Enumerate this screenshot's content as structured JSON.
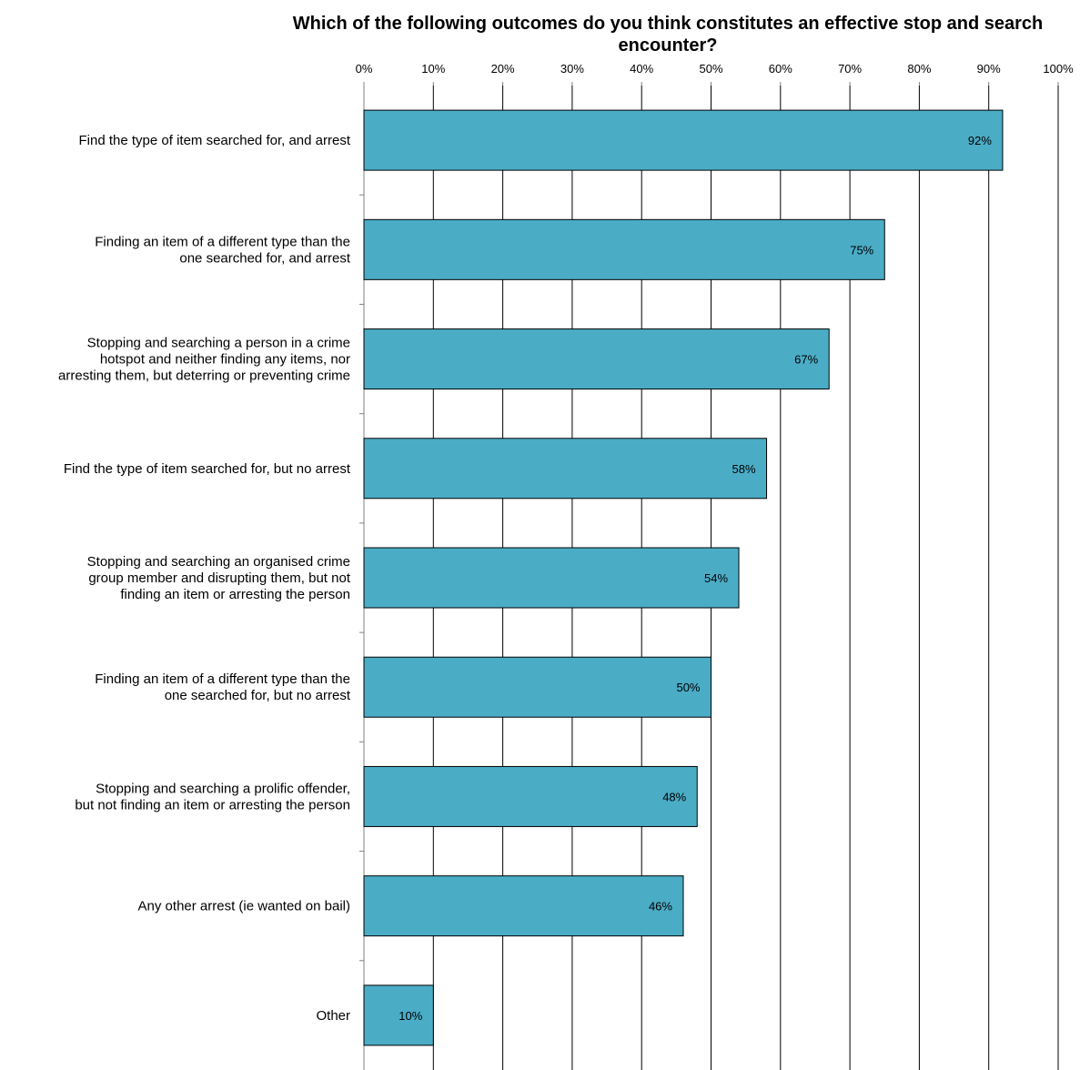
{
  "chart_data": {
    "type": "bar",
    "orientation": "horizontal",
    "title": "Which of the following outcomes do you think constitutes an effective stop and search encounter?",
    "xlabel": "",
    "ylabel": "",
    "xlim": [
      0,
      100
    ],
    "tick_labels": [
      "0%",
      "10%",
      "20%",
      "30%",
      "40%",
      "50%",
      "60%",
      "70%",
      "80%",
      "90%",
      "100%"
    ],
    "axis_position": "top",
    "grid": true,
    "legend": "none",
    "bar_color": "#4bacc6",
    "categories": [
      [
        "Find the type of item searched for, and arrest"
      ],
      [
        "Finding an item of a different type than the",
        "one searched for, and arrest"
      ],
      [
        "Stopping and searching a person in a crime",
        "hotspot and neither finding any items, nor",
        "arresting them, but deterring or preventing crime"
      ],
      [
        "Find the type of item searched for, but no arrest"
      ],
      [
        "Stopping and searching an organised crime",
        "group member and disrupting them, but not",
        "finding an item or arresting the person"
      ],
      [
        "Finding an item of a different type than the",
        "one searched for, but no arrest"
      ],
      [
        "Stopping and searching a prolific offender,",
        "but not finding an item or arresting the person"
      ],
      [
        "Any other arrest (ie wanted on bail)"
      ],
      [
        "Other"
      ]
    ],
    "values": [
      92,
      75,
      67,
      58,
      54,
      50,
      48,
      46,
      10
    ],
    "data_labels": [
      "92%",
      "75%",
      "67%",
      "58%",
      "54%",
      "50%",
      "48%",
      "46%",
      "10%"
    ]
  }
}
